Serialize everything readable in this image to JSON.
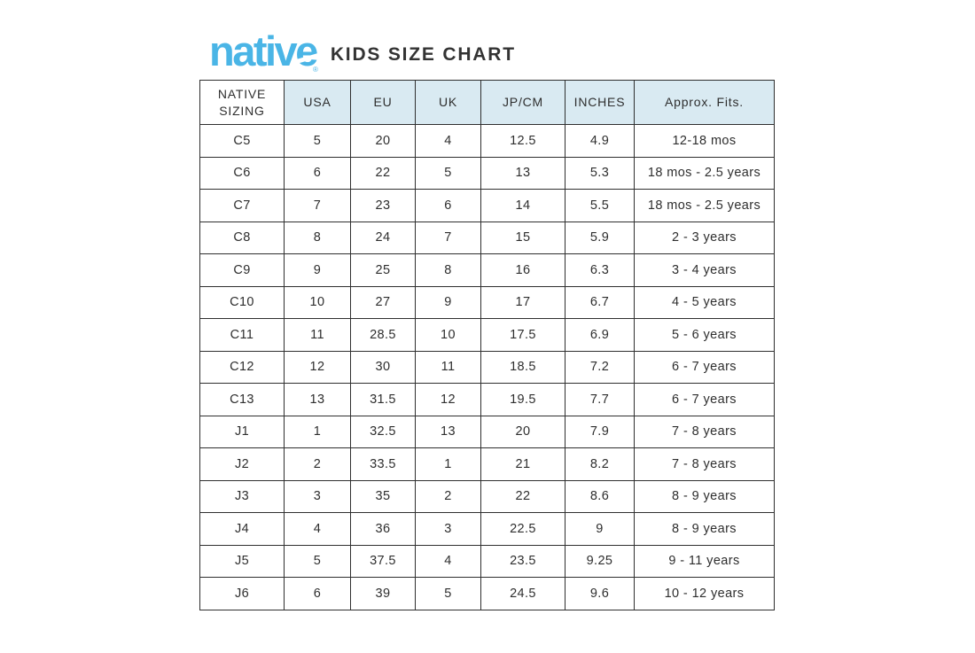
{
  "header": {
    "logo_text": "native",
    "logo_mark": "®",
    "title": "KIDS SIZE CHART"
  },
  "colors": {
    "logo_blue": "#4ab5e6",
    "table_header_bg": "#d9eaf2",
    "table_border": "#2f2f2f",
    "text": "#2e2e2e"
  },
  "chart_data": {
    "type": "table",
    "title": "KIDS SIZE CHART",
    "brand": "native",
    "columns": [
      "NATIVE SIZING",
      "USA",
      "EU",
      "UK",
      "JP/CM",
      "INCHES",
      "Approx. Fits."
    ],
    "rows": [
      [
        "C5",
        "5",
        "20",
        "4",
        "12.5",
        "4.9",
        "12-18 mos"
      ],
      [
        "C6",
        "6",
        "22",
        "5",
        "13",
        "5.3",
        "18 mos - 2.5 years"
      ],
      [
        "C7",
        "7",
        "23",
        "6",
        "14",
        "5.5",
        "18 mos - 2.5 years"
      ],
      [
        "C8",
        "8",
        "24",
        "7",
        "15",
        "5.9",
        "2 - 3 years"
      ],
      [
        "C9",
        "9",
        "25",
        "8",
        "16",
        "6.3",
        "3 - 4 years"
      ],
      [
        "C10",
        "10",
        "27",
        "9",
        "17",
        "6.7",
        "4 - 5 years"
      ],
      [
        "C11",
        "11",
        "28.5",
        "10",
        "17.5",
        "6.9",
        "5 - 6 years"
      ],
      [
        "C12",
        "12",
        "30",
        "11",
        "18.5",
        "7.2",
        "6 - 7 years"
      ],
      [
        "C13",
        "13",
        "31.5",
        "12",
        "19.5",
        "7.7",
        "6 - 7 years"
      ],
      [
        "J1",
        "1",
        "32.5",
        "13",
        "20",
        "7.9",
        "7 - 8 years"
      ],
      [
        "J2",
        "2",
        "33.5",
        "1",
        "21",
        "8.2",
        "7 - 8 years"
      ],
      [
        "J3",
        "3",
        "35",
        "2",
        "22",
        "8.6",
        "8 - 9 years"
      ],
      [
        "J4",
        "4",
        "36",
        "3",
        "22.5",
        "9",
        "8 - 9 years"
      ],
      [
        "J5",
        "5",
        "37.5",
        "4",
        "23.5",
        "9.25",
        "9 - 11 years"
      ],
      [
        "J6",
        "6",
        "39",
        "5",
        "24.5",
        "9.6",
        "10 - 12 years"
      ]
    ]
  }
}
